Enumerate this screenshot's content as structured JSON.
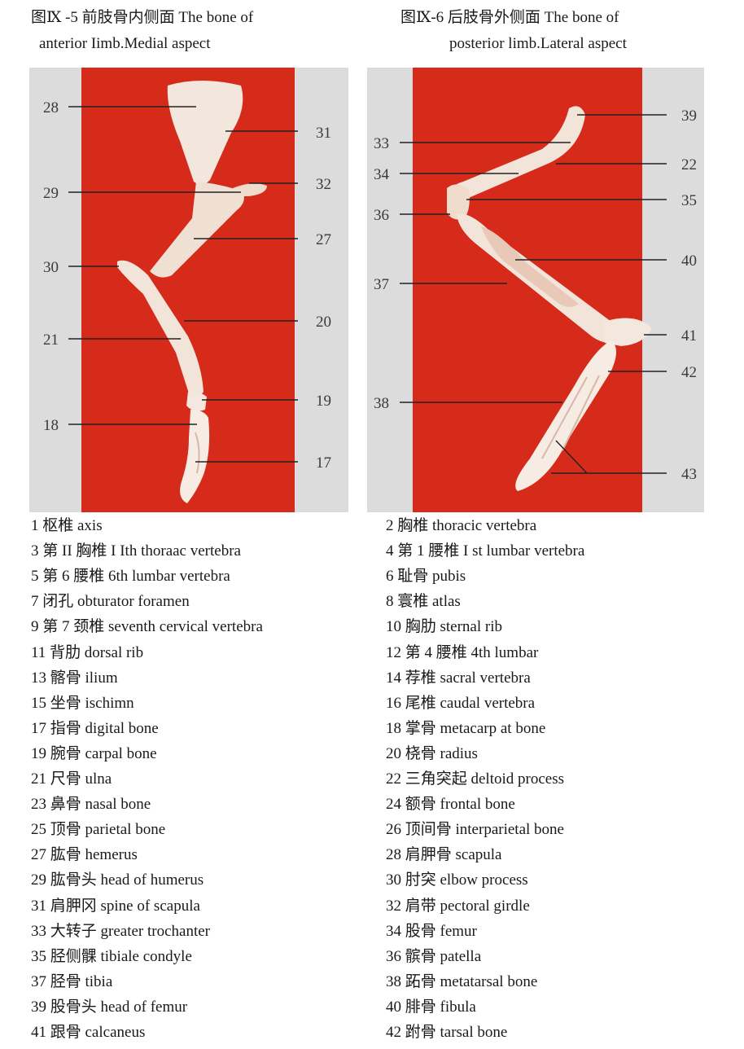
{
  "figure_left": {
    "caption_line1": "图Ⅸ  -5 前肢骨内侧面 The bone of",
    "caption_line2": "anterior Iimb.Medial aspect",
    "labels": [
      "28",
      "29",
      "30",
      "21",
      "18",
      "31",
      "32",
      "27",
      "20",
      "19",
      "17"
    ]
  },
  "figure_right": {
    "caption_line1": "图Ⅸ-6 后肢骨外侧面 The bone of",
    "caption_line2": "posterior limb.Lateral aspect",
    "labels": [
      "33",
      "34",
      "36",
      "37",
      "38",
      "39",
      "22",
      "35",
      "40",
      "41",
      "42",
      "43"
    ]
  },
  "legend": [
    [
      "1 枢椎 axis",
      "2 胸椎 thoracic vertebra"
    ],
    [
      "3 第 II 胸椎 I Ith thoraac vertebra",
      "4 第 1 腰椎 I st lumbar vertebra"
    ],
    [
      "5 第 6 腰椎 6th lumbar vertebra",
      "6 耻骨 pubis"
    ],
    [
      "7 闭孔 obturator foramen",
      "8 寰椎 atlas"
    ],
    [
      "9 第 7 颈椎 seventh cervical vertebra",
      "10 胸肋 sternal rib"
    ],
    [
      "11 背肋 dorsal rib",
      "12 第 4 腰椎 4th lumbar"
    ],
    [
      "13 髂骨 ilium",
      "14 荐椎 sacral vertebra"
    ],
    [
      "15 坐骨 ischimn",
      "16 尾椎 caudal vertebra"
    ],
    [
      "17 指骨 digital bone",
      "18 掌骨 metacarp at bone"
    ],
    [
      "19 腕骨 carpal bone",
      "20 桡骨 radius"
    ],
    [
      "21 尺骨 ulna",
      "22 三角突起 deltoid process"
    ],
    [
      "23 鼻骨 nasal bone",
      "24 额骨 frontal bone"
    ],
    [
      "25 顶骨 parietal bone",
      "26 顶间骨 interparietal bone"
    ],
    [
      "27 肱骨 hemerus",
      "28 肩胛骨 scapula"
    ],
    [
      "29 肱骨头 head of humerus",
      "30 肘突 elbow process"
    ],
    [
      "31 肩胛冈 spine of scapula",
      "32 肩带 pectoral girdle"
    ],
    [
      "33 大转子 greater trochanter",
      "34  股骨  femur"
    ],
    [
      "35 胫侧髁 tibiale condyle",
      "36 髌骨  patella"
    ],
    [
      "37 胫骨 tibia",
      "38 跖骨 metatarsal bone"
    ],
    [
      "39 股骨头 head of femur",
      "40 腓骨 fibula"
    ],
    [
      "41 跟骨 calcaneus",
      "42 跗骨  tarsal bone"
    ]
  ],
  "colors": {
    "background_red": "#d62a1a",
    "bone": "#f3e6dc",
    "panel_gray": "#dcdcdc",
    "leader_line": "#222222"
  }
}
